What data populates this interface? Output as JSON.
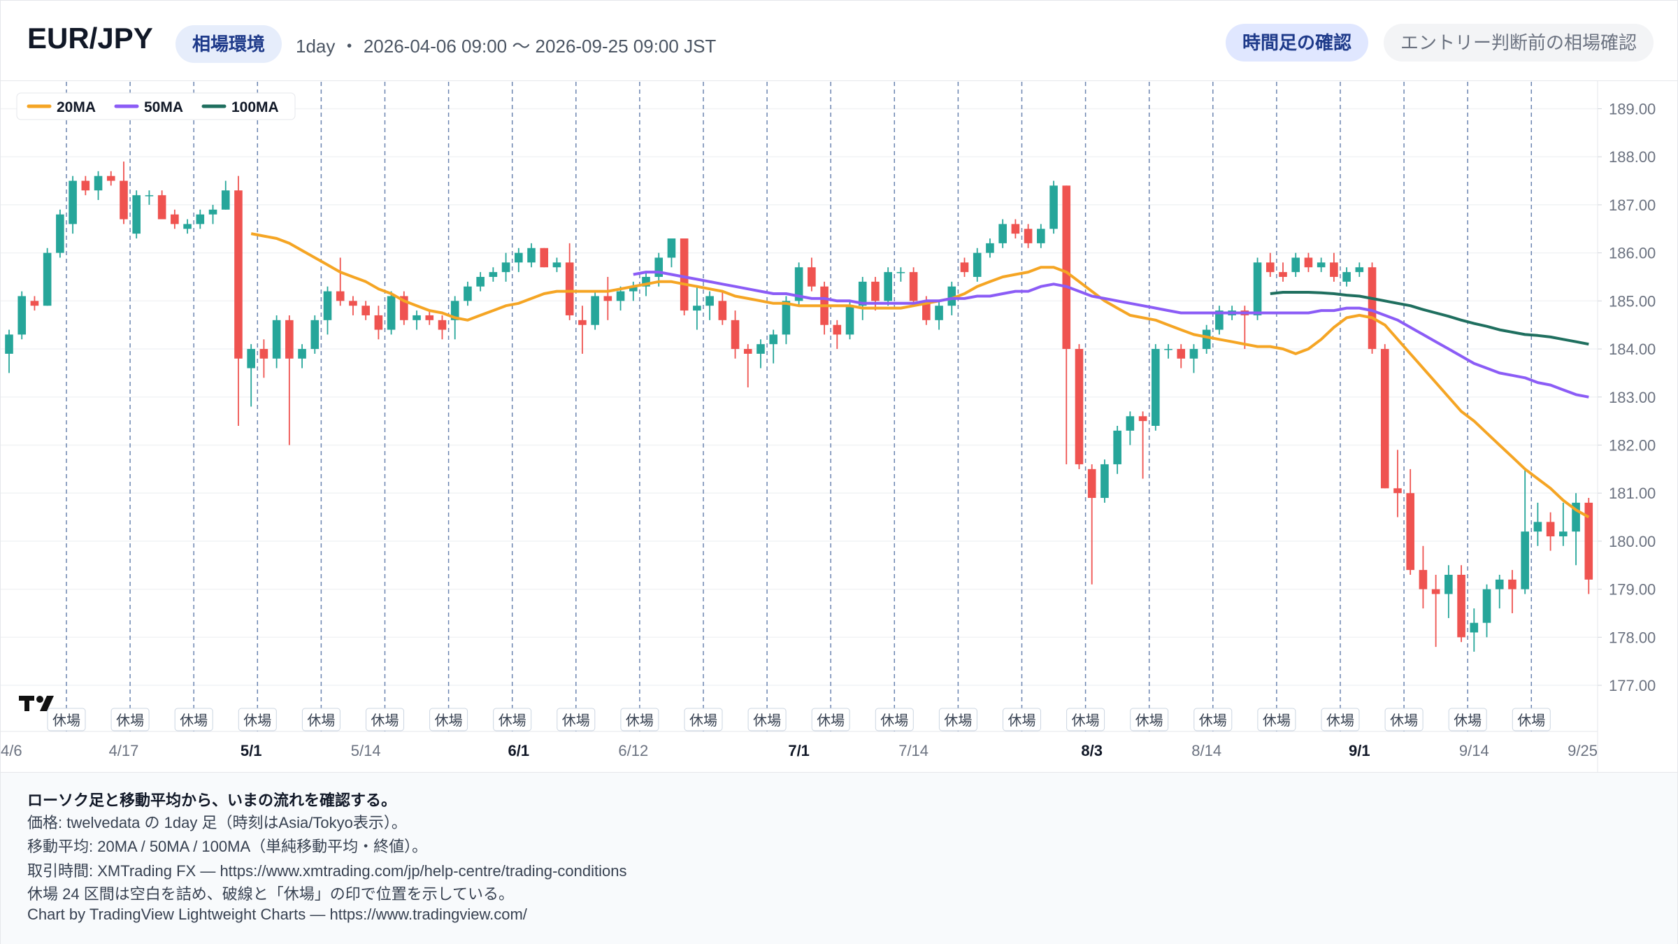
{
  "header": {
    "title": "EUR/JPY",
    "badge": "相場環境",
    "info": "1day ・ 2026-04-06 09:00 〜 2026-09-25 09:00 JST",
    "buttons": [
      "時間足の確認",
      "エントリー判断前の相場確認"
    ]
  },
  "chart_data": {
    "type": "candlestick",
    "categories": [
      "4/6",
      null,
      null,
      null,
      null,
      null,
      null,
      null,
      null,
      "4/17",
      null,
      null,
      null,
      null,
      null,
      null,
      null,
      null,
      null,
      "5/1",
      null,
      null,
      null,
      null,
      null,
      null,
      null,
      null,
      "5/14",
      null,
      null,
      null,
      null,
      null,
      null,
      null,
      null,
      null,
      null,
      null,
      "6/1",
      null,
      null,
      null,
      null,
      null,
      null,
      null,
      null,
      "6/12",
      null,
      null,
      null,
      null,
      null,
      null,
      null,
      null,
      null,
      null,
      null,
      null,
      "7/1",
      null,
      null,
      null,
      null,
      null,
      null,
      null,
      null,
      "7/14",
      null,
      null,
      null,
      null,
      null,
      null,
      null,
      null,
      null,
      null,
      null,
      null,
      null,
      "8/3",
      null,
      null,
      null,
      null,
      null,
      null,
      null,
      null,
      "8/14",
      null,
      null,
      null,
      null,
      null,
      null,
      null,
      null,
      null,
      null,
      null,
      "9/1",
      null,
      null,
      null,
      null,
      null,
      null,
      null,
      null,
      "9/14",
      null,
      null,
      null,
      null,
      null,
      null,
      null,
      null,
      "9/25"
    ],
    "bold_category_indices": [
      19,
      40,
      62,
      85,
      106
    ],
    "open": [
      183.9,
      184.3,
      185.0,
      184.9,
      186.0,
      186.6,
      187.5,
      187.3,
      187.6,
      187.5,
      186.4,
      187.2,
      187.2,
      186.8,
      186.5,
      186.6,
      186.8,
      186.9,
      187.3,
      183.6,
      184.0,
      183.8,
      184.6,
      183.8,
      184.0,
      184.6,
      185.2,
      185.0,
      184.9,
      184.7,
      184.4,
      185.1,
      184.6,
      184.7,
      184.6,
      184.6,
      185.0,
      185.3,
      185.5,
      185.6,
      185.8,
      185.8,
      186.1,
      185.7,
      185.8,
      184.6,
      184.5,
      185.1,
      185.0,
      185.2,
      185.3,
      185.5,
      185.9,
      186.3,
      184.8,
      184.9,
      185.0,
      184.6,
      184.0,
      183.9,
      184.1,
      184.3,
      185.0,
      185.7,
      185.3,
      184.5,
      184.3,
      184.9,
      185.4,
      185.0,
      185.6,
      185.6,
      185.0,
      184.6,
      184.9,
      185.8,
      185.5,
      186.0,
      186.2,
      186.6,
      186.5,
      186.2,
      186.5,
      187.4,
      184.0,
      181.5,
      180.9,
      181.6,
      182.3,
      182.6,
      182.4,
      184.0,
      184.0,
      183.8,
      184.0,
      184.4,
      184.7,
      184.8,
      184.7,
      185.8,
      185.6,
      185.6,
      185.9,
      185.7,
      185.8,
      185.4,
      185.6,
      185.7,
      184.0,
      181.1,
      181.0,
      179.4,
      179.0,
      178.9,
      179.3,
      178.1,
      178.3,
      179.0,
      179.2,
      179.0,
      180.2,
      180.4,
      180.1,
      180.2,
      180.8
    ],
    "high": [
      184.4,
      185.2,
      185.1,
      186.1,
      186.9,
      187.6,
      187.6,
      187.7,
      187.7,
      187.9,
      187.3,
      187.3,
      187.3,
      186.9,
      186.7,
      186.9,
      187.0,
      187.5,
      187.6,
      184.1,
      184.2,
      184.7,
      184.7,
      184.1,
      184.7,
      185.3,
      185.9,
      185.1,
      185.0,
      184.9,
      185.2,
      185.2,
      184.8,
      184.8,
      184.7,
      185.1,
      185.4,
      185.6,
      185.7,
      186.0,
      186.1,
      186.2,
      186.1,
      185.9,
      186.2,
      184.9,
      185.2,
      185.5,
      185.3,
      185.4,
      185.6,
      186.0,
      186.3,
      186.3,
      185.3,
      185.2,
      185.2,
      184.8,
      184.1,
      184.2,
      184.4,
      185.1,
      185.8,
      185.9,
      185.4,
      184.6,
      185.0,
      185.5,
      185.5,
      185.7,
      185.7,
      185.7,
      185.1,
      185.0,
      185.4,
      185.9,
      186.1,
      186.3,
      186.7,
      186.7,
      186.6,
      186.6,
      187.5,
      187.4,
      184.1,
      181.6,
      181.7,
      182.4,
      182.7,
      182.7,
      184.1,
      184.1,
      184.1,
      184.1,
      184.5,
      184.9,
      184.9,
      184.9,
      185.9,
      186.0,
      185.8,
      186.0,
      186.0,
      185.9,
      186.0,
      185.7,
      185.8,
      185.8,
      184.1,
      181.9,
      181.5,
      179.9,
      179.3,
      179.5,
      179.5,
      178.6,
      179.1,
      179.3,
      179.4,
      181.5,
      180.8,
      180.6,
      180.8,
      181.0,
      180.9
    ],
    "low": [
      183.5,
      184.2,
      184.8,
      184.9,
      185.9,
      186.4,
      187.2,
      187.1,
      187.4,
      186.6,
      186.3,
      187.0,
      186.7,
      186.5,
      186.4,
      186.5,
      186.6,
      186.9,
      182.4,
      182.8,
      183.4,
      183.6,
      182.0,
      183.6,
      183.9,
      184.3,
      184.9,
      184.7,
      184.6,
      184.2,
      184.3,
      184.5,
      184.4,
      184.5,
      184.2,
      184.2,
      184.9,
      185.2,
      185.4,
      185.4,
      185.6,
      185.7,
      185.7,
      185.6,
      184.6,
      183.9,
      184.4,
      184.6,
      184.8,
      185.0,
      185.1,
      185.3,
      185.7,
      184.7,
      184.4,
      184.6,
      184.5,
      183.8,
      183.2,
      183.6,
      183.7,
      184.1,
      184.9,
      185.2,
      184.3,
      184.0,
      184.2,
      184.6,
      184.8,
      184.9,
      185.4,
      184.9,
      184.5,
      184.4,
      184.7,
      185.5,
      185.4,
      185.9,
      186.1,
      186.3,
      186.1,
      186.1,
      186.4,
      181.6,
      181.5,
      179.1,
      180.8,
      181.4,
      182.0,
      181.3,
      182.3,
      183.8,
      183.6,
      183.5,
      183.9,
      184.3,
      184.6,
      184.0,
      184.6,
      185.5,
      185.4,
      185.5,
      185.6,
      185.6,
      185.4,
      185.3,
      185.5,
      183.9,
      181.1,
      180.5,
      179.3,
      178.6,
      177.8,
      178.4,
      177.9,
      177.7,
      178.0,
      178.6,
      178.5,
      178.9,
      179.9,
      179.8,
      179.9,
      179.5,
      178.9
    ],
    "close": [
      184.3,
      185.1,
      184.9,
      186.0,
      186.8,
      187.5,
      187.3,
      187.6,
      187.5,
      186.7,
      187.2,
      187.2,
      186.7,
      186.6,
      186.6,
      186.8,
      186.9,
      187.3,
      183.8,
      184.0,
      183.8,
      184.6,
      183.8,
      184.0,
      184.6,
      185.2,
      185.0,
      184.9,
      184.7,
      184.4,
      185.1,
      184.6,
      184.7,
      184.6,
      184.4,
      185.0,
      185.3,
      185.5,
      185.6,
      185.8,
      186.0,
      186.1,
      185.7,
      185.8,
      184.7,
      184.5,
      185.1,
      185.0,
      185.2,
      185.3,
      185.5,
      185.9,
      186.3,
      184.8,
      184.9,
      185.1,
      184.6,
      184.0,
      183.9,
      184.1,
      184.3,
      185.0,
      185.7,
      185.3,
      184.5,
      184.3,
      184.9,
      185.4,
      185.0,
      185.6,
      185.6,
      185.0,
      184.6,
      184.9,
      185.3,
      185.6,
      186.0,
      186.2,
      186.6,
      186.4,
      186.2,
      186.5,
      187.4,
      184.0,
      181.6,
      180.9,
      181.6,
      182.3,
      182.6,
      182.5,
      184.0,
      184.0,
      183.8,
      184.0,
      184.4,
      184.8,
      184.8,
      184.7,
      185.8,
      185.6,
      185.5,
      185.9,
      185.7,
      185.8,
      185.5,
      185.6,
      185.7,
      184.0,
      181.1,
      181.0,
      179.4,
      179.0,
      178.9,
      179.3,
      178.0,
      178.3,
      179.0,
      179.2,
      179.0,
      180.2,
      180.4,
      180.1,
      180.2,
      180.8,
      179.2
    ],
    "up_color": "#26a69a",
    "down_color": "#ef5350",
    "series": [
      {
        "name": "20MA",
        "color": "#f5a524",
        "values": [
          null,
          null,
          null,
          null,
          null,
          null,
          null,
          null,
          null,
          null,
          null,
          null,
          null,
          null,
          null,
          null,
          null,
          null,
          null,
          186.4,
          186.35,
          186.3,
          186.2,
          186.05,
          185.9,
          185.75,
          185.6,
          185.5,
          185.4,
          185.25,
          185.15,
          185.0,
          184.9,
          184.8,
          184.75,
          184.65,
          184.6,
          184.7,
          184.8,
          184.9,
          184.95,
          185.05,
          185.15,
          185.2,
          185.2,
          185.2,
          185.2,
          185.2,
          185.25,
          185.3,
          185.35,
          185.4,
          185.4,
          185.35,
          185.3,
          185.25,
          185.2,
          185.1,
          185.05,
          185.0,
          184.95,
          184.95,
          184.9,
          184.9,
          184.9,
          184.9,
          184.9,
          184.85,
          184.85,
          184.85,
          184.85,
          184.9,
          184.95,
          185.0,
          185.05,
          185.15,
          185.3,
          185.4,
          185.5,
          185.55,
          185.6,
          185.7,
          185.7,
          185.6,
          185.4,
          185.2,
          185.0,
          184.85,
          184.7,
          184.65,
          184.6,
          184.5,
          184.4,
          184.3,
          184.25,
          184.2,
          184.15,
          184.1,
          184.05,
          184.05,
          184.0,
          183.9,
          184.0,
          184.2,
          184.45,
          184.65,
          184.7,
          184.65,
          184.5,
          184.2,
          183.9,
          183.6,
          183.3,
          183.0,
          182.7,
          182.5,
          182.25,
          182.0,
          181.75,
          181.5,
          181.3,
          181.1,
          180.85,
          180.65,
          180.5
        ]
      },
      {
        "name": "50MA",
        "color": "#8b5cf6",
        "values": [
          null,
          null,
          null,
          null,
          null,
          null,
          null,
          null,
          null,
          null,
          null,
          null,
          null,
          null,
          null,
          null,
          null,
          null,
          null,
          null,
          null,
          null,
          null,
          null,
          null,
          null,
          null,
          null,
          null,
          null,
          null,
          null,
          null,
          null,
          null,
          null,
          null,
          null,
          null,
          null,
          null,
          null,
          null,
          null,
          null,
          null,
          null,
          null,
          null,
          185.55,
          185.6,
          185.6,
          185.55,
          185.5,
          185.45,
          185.4,
          185.35,
          185.3,
          185.25,
          185.2,
          185.15,
          185.15,
          185.1,
          185.05,
          185.05,
          185.0,
          185.0,
          184.95,
          184.95,
          184.95,
          184.95,
          184.95,
          185.0,
          185.0,
          185.05,
          185.05,
          185.1,
          185.1,
          185.15,
          185.2,
          185.2,
          185.3,
          185.35,
          185.3,
          185.2,
          185.1,
          185.05,
          185.0,
          184.95,
          184.9,
          184.85,
          184.8,
          184.75,
          184.75,
          184.75,
          184.75,
          184.75,
          184.75,
          184.75,
          184.75,
          184.75,
          184.75,
          184.75,
          184.8,
          184.8,
          184.85,
          184.85,
          184.8,
          184.7,
          184.6,
          184.45,
          184.3,
          184.15,
          184.0,
          183.85,
          183.7,
          183.6,
          183.5,
          183.45,
          183.4,
          183.3,
          183.25,
          183.15,
          183.05,
          183.0
        ]
      },
      {
        "name": "100MA",
        "color": "#1f6f5f",
        "values": [
          null,
          null,
          null,
          null,
          null,
          null,
          null,
          null,
          null,
          null,
          null,
          null,
          null,
          null,
          null,
          null,
          null,
          null,
          null,
          null,
          null,
          null,
          null,
          null,
          null,
          null,
          null,
          null,
          null,
          null,
          null,
          null,
          null,
          null,
          null,
          null,
          null,
          null,
          null,
          null,
          null,
          null,
          null,
          null,
          null,
          null,
          null,
          null,
          null,
          null,
          null,
          null,
          null,
          null,
          null,
          null,
          null,
          null,
          null,
          null,
          null,
          null,
          null,
          null,
          null,
          null,
          null,
          null,
          null,
          null,
          null,
          null,
          null,
          null,
          null,
          null,
          null,
          null,
          null,
          null,
          null,
          null,
          null,
          null,
          null,
          null,
          null,
          null,
          null,
          null,
          null,
          null,
          null,
          null,
          null,
          null,
          null,
          null,
          null,
          185.15,
          185.18,
          185.18,
          185.18,
          185.17,
          185.15,
          185.12,
          185.1,
          185.05,
          185.0,
          184.95,
          184.9,
          184.82,
          184.75,
          184.68,
          184.6,
          184.53,
          184.47,
          184.4,
          184.35,
          184.3,
          184.28,
          184.25,
          184.2,
          184.15,
          184.1
        ]
      }
    ],
    "ylim": [
      176.04,
      189.56
    ],
    "yticks": [
      {
        "value": 177,
        "label": "177.00"
      },
      {
        "value": 178,
        "label": "178.00"
      },
      {
        "value": 179,
        "label": "179.00"
      },
      {
        "value": 180,
        "label": "180.00"
      },
      {
        "value": 181,
        "label": "181.00"
      },
      {
        "value": 182,
        "label": "182.00"
      },
      {
        "value": 183,
        "label": "183.00"
      },
      {
        "value": 184,
        "label": "184.00"
      },
      {
        "value": 185,
        "label": "185.00"
      },
      {
        "value": 186,
        "label": "186.00"
      },
      {
        "value": 187,
        "label": "187.00"
      },
      {
        "value": 188,
        "label": "188.00"
      },
      {
        "value": 189,
        "label": "189.00"
      }
    ],
    "grid": true,
    "legend": "top-left",
    "closure_label": "休場",
    "closures_after": [
      4,
      9,
      14,
      19,
      24,
      29,
      34,
      39,
      44,
      49,
      54,
      59,
      64,
      69,
      74,
      79,
      84,
      89,
      94,
      99,
      104,
      109,
      114,
      119
    ]
  },
  "footer": {
    "lines": [
      "ローソク足と移動平均から、いまの流れを確認する。",
      "価格: twelvedata の 1day 足（時刻はAsia/Tokyo表示）。",
      "移動平均: 20MA / 50MA / 100MA（単純移動平均・終値）。",
      "取引時間: XMTrading FX — https://www.xmtrading.com/jp/help-centre/trading-conditions",
      "休場 24 区間は空白を詰め、破線と「休場」の印で位置を示している。",
      "Chart by TradingView Lightweight Charts — https://www.tradingview.com/"
    ]
  }
}
